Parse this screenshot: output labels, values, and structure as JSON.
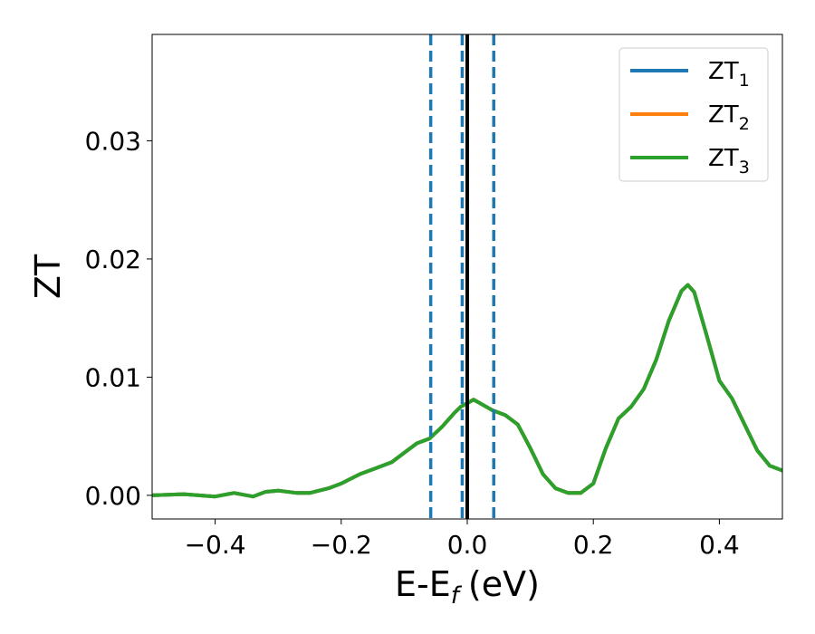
{
  "chart_data": {
    "type": "line",
    "xlabel": "E-E",
    "xlabel_sub": "f",
    "xlabel_unit": "(eV)",
    "ylabel": "ZT",
    "xlim": [
      -0.5,
      0.5
    ],
    "ylim": [
      -0.002,
      0.039
    ],
    "xticks": [
      -0.4,
      -0.2,
      0.0,
      0.2,
      0.4
    ],
    "xtick_labels": [
      "−0.4",
      "−0.2",
      "0.0",
      "0.2",
      "0.4"
    ],
    "yticks": [
      0.0,
      0.01,
      0.02,
      0.03
    ],
    "ytick_labels": [
      "0.00",
      "0.01",
      "0.02",
      "0.03"
    ],
    "grid": false,
    "legend_position": "top-right",
    "series": [
      {
        "name": "ZT",
        "name_sub": "1",
        "color": "#1f77b4",
        "x": [
          -0.5,
          -0.45,
          -0.4,
          -0.37,
          -0.34,
          -0.32,
          -0.3,
          -0.27,
          -0.25,
          -0.22,
          -0.2,
          -0.17,
          -0.15,
          -0.12,
          -0.1,
          -0.08,
          -0.06,
          -0.04,
          -0.02,
          -0.01,
          0.0,
          0.01,
          0.02,
          0.04,
          0.06,
          0.08,
          0.1,
          0.12,
          0.14,
          0.16,
          0.18,
          0.2,
          0.22,
          0.24,
          0.26,
          0.28,
          0.3,
          0.32,
          0.34,
          0.35,
          0.36,
          0.38,
          0.4,
          0.42,
          0.44,
          0.46,
          0.48,
          0.5
        ],
        "y": [
          0.0,
          0.0001,
          -0.0001,
          0.0002,
          -0.0001,
          0.0003,
          0.0004,
          0.0002,
          0.0002,
          0.0006,
          0.001,
          0.0018,
          0.0022,
          0.0028,
          0.0036,
          0.0044,
          0.0048,
          0.0058,
          0.007,
          0.0075,
          0.0078,
          0.0081,
          0.0078,
          0.0072,
          0.0068,
          0.006,
          0.004,
          0.0018,
          0.0006,
          0.0002,
          0.0002,
          0.001,
          0.004,
          0.0065,
          0.0075,
          0.009,
          0.0115,
          0.0148,
          0.0173,
          0.0178,
          0.0172,
          0.0135,
          0.0097,
          0.0082,
          0.006,
          0.0038,
          0.0025,
          0.0021
        ]
      },
      {
        "name": "ZT",
        "name_sub": "2",
        "color": "#ff7f0e",
        "x": [
          -0.5,
          -0.45,
          -0.4,
          -0.37,
          -0.34,
          -0.32,
          -0.3,
          -0.27,
          -0.25,
          -0.22,
          -0.2,
          -0.17,
          -0.15,
          -0.12,
          -0.1,
          -0.08,
          -0.06,
          -0.04,
          -0.02,
          -0.01,
          0.0,
          0.01,
          0.02,
          0.04,
          0.06,
          0.08,
          0.1,
          0.12,
          0.14,
          0.16,
          0.18,
          0.2,
          0.22,
          0.24,
          0.26,
          0.28,
          0.3,
          0.32,
          0.34,
          0.35,
          0.36,
          0.38,
          0.4,
          0.42,
          0.44,
          0.46,
          0.48,
          0.5
        ],
        "y": [
          0.0,
          0.0001,
          -0.0001,
          0.0002,
          -0.0001,
          0.0003,
          0.0004,
          0.0002,
          0.0002,
          0.0006,
          0.001,
          0.0018,
          0.0022,
          0.0028,
          0.0036,
          0.0044,
          0.0048,
          0.0058,
          0.007,
          0.0075,
          0.0078,
          0.0081,
          0.0078,
          0.0072,
          0.0068,
          0.006,
          0.004,
          0.0018,
          0.0006,
          0.0002,
          0.0002,
          0.001,
          0.004,
          0.0065,
          0.0075,
          0.009,
          0.0115,
          0.0148,
          0.0173,
          0.0178,
          0.0172,
          0.0135,
          0.0097,
          0.0082,
          0.006,
          0.0038,
          0.0025,
          0.0021
        ]
      },
      {
        "name": "ZT",
        "name_sub": "3",
        "color": "#2ca02c",
        "x": [
          -0.5,
          -0.45,
          -0.4,
          -0.37,
          -0.34,
          -0.32,
          -0.3,
          -0.27,
          -0.25,
          -0.22,
          -0.2,
          -0.17,
          -0.15,
          -0.12,
          -0.1,
          -0.08,
          -0.06,
          -0.04,
          -0.02,
          -0.01,
          0.0,
          0.01,
          0.02,
          0.04,
          0.06,
          0.08,
          0.1,
          0.12,
          0.14,
          0.16,
          0.18,
          0.2,
          0.22,
          0.24,
          0.26,
          0.28,
          0.3,
          0.32,
          0.34,
          0.35,
          0.36,
          0.38,
          0.4,
          0.42,
          0.44,
          0.46,
          0.48,
          0.5
        ],
        "y": [
          0.0,
          0.0001,
          -0.0001,
          0.0002,
          -0.0001,
          0.0003,
          0.0004,
          0.0002,
          0.0002,
          0.0006,
          0.001,
          0.0018,
          0.0022,
          0.0028,
          0.0036,
          0.0044,
          0.0048,
          0.0058,
          0.007,
          0.0075,
          0.0078,
          0.0081,
          0.0078,
          0.0072,
          0.0068,
          0.006,
          0.004,
          0.0018,
          0.0006,
          0.0002,
          0.0002,
          0.001,
          0.004,
          0.0065,
          0.0075,
          0.009,
          0.0115,
          0.0148,
          0.0173,
          0.0178,
          0.0172,
          0.0135,
          0.0097,
          0.0082,
          0.006,
          0.0038,
          0.0025,
          0.0021
        ]
      }
    ],
    "vlines": [
      {
        "x": -0.058,
        "style": "dashed",
        "color": "#1f77b4"
      },
      {
        "x": -0.008,
        "style": "dashed",
        "color": "#1f77b4"
      },
      {
        "x": 0.042,
        "style": "dashed",
        "color": "#1f77b4"
      },
      {
        "x": 0.0,
        "style": "solid",
        "color": "#000000"
      }
    ]
  }
}
